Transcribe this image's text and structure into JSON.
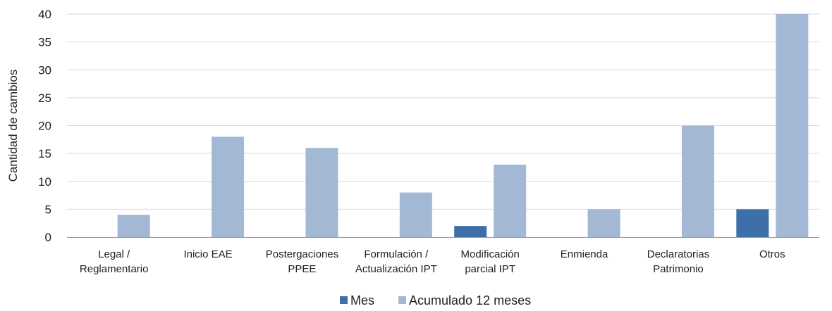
{
  "chart_data": {
    "type": "bar",
    "ylabel": "Cantidad de cambios",
    "xlabel": "",
    "ylim": [
      0,
      40
    ],
    "yticks": [
      0,
      5,
      10,
      15,
      20,
      25,
      30,
      35,
      40
    ],
    "grid": true,
    "legend_position": "bottom",
    "categories": [
      [
        "Legal /",
        "Reglamentario"
      ],
      [
        "Inicio EAE"
      ],
      [
        "Postergaciones",
        "PPEE"
      ],
      [
        "Formulación /",
        "Actualización IPT"
      ],
      [
        "Modificación",
        "parcial IPT"
      ],
      [
        "Enmienda"
      ],
      [
        "Declaratorias",
        "Patrimonio"
      ],
      [
        "Otros"
      ]
    ],
    "series": [
      {
        "name": "Mes",
        "color": "#3f6fa8",
        "values": [
          0,
          0,
          0,
          0,
          2,
          0,
          0,
          5
        ]
      },
      {
        "name": "Acumulado 12 meses",
        "color": "#a3b8d4",
        "values": [
          4,
          18,
          16,
          8,
          13,
          5,
          20,
          40
        ]
      }
    ]
  }
}
